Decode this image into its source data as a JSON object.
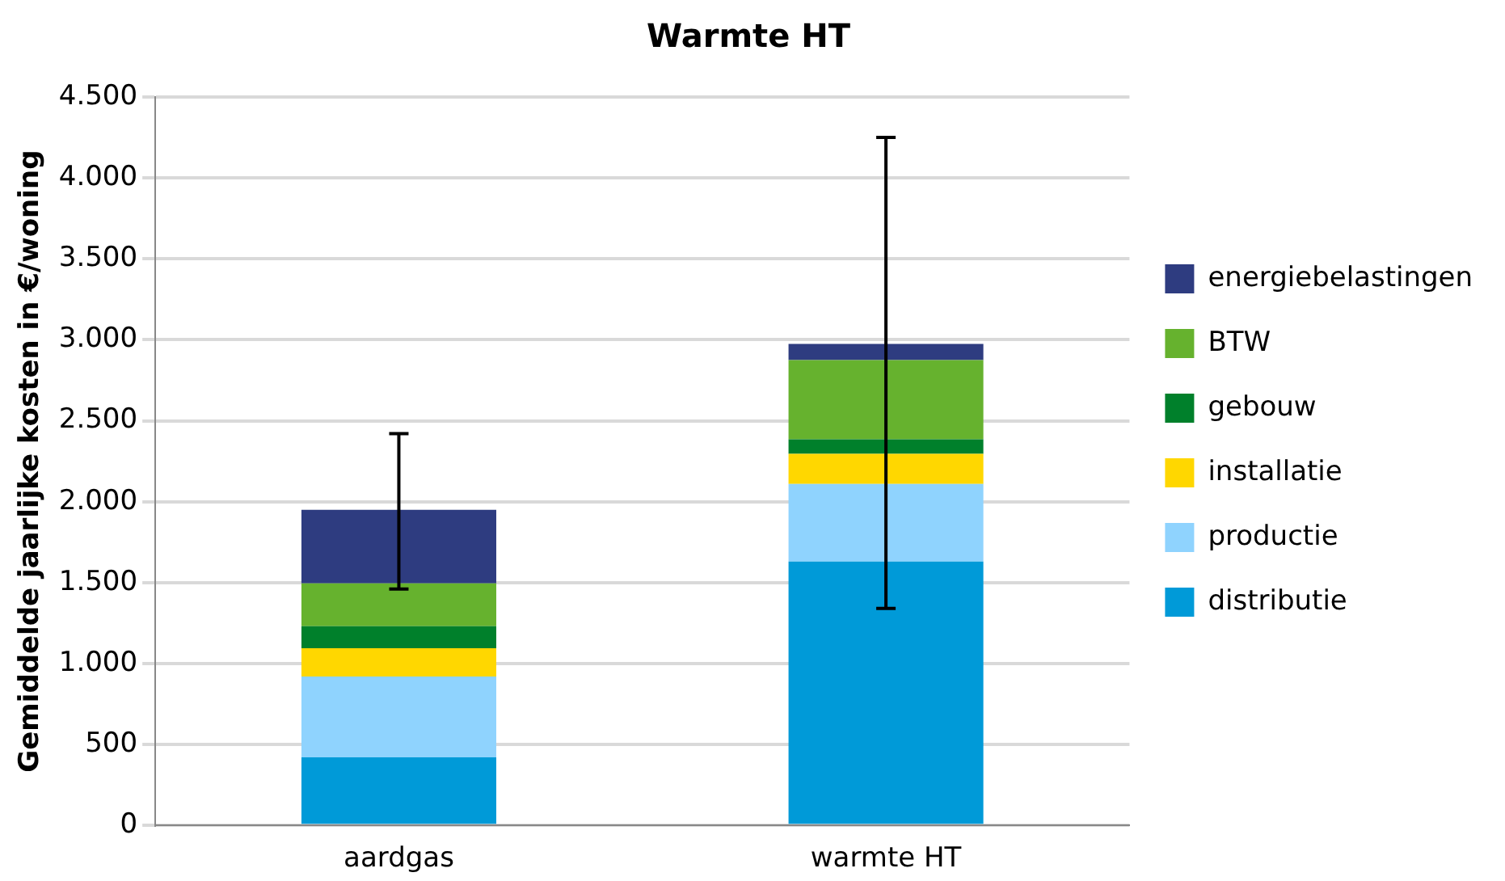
{
  "chart_data": {
    "type": "bar",
    "title": "Warmte HT",
    "ylabel": "Gemiddelde jaarlijke kosten in €/woning",
    "categories": [
      "aardgas",
      "warmte HT"
    ],
    "stacked": true,
    "grid": "y",
    "legend": "right",
    "ylim": [
      0,
      4500
    ],
    "yticks": [
      0,
      500,
      {
        "value": 1000,
        "label": "1.000"
      },
      {
        "value": 1500,
        "label": "1.500"
      },
      {
        "value": 2000,
        "label": "2.000"
      },
      {
        "value": 2500,
        "label": "2.500"
      },
      {
        "value": 3000,
        "label": "3.000"
      },
      {
        "value": 3500,
        "label": "3.500"
      },
      {
        "value": 4000,
        "label": "4.000"
      },
      {
        "value": 4500,
        "label": "4.500"
      }
    ],
    "series": [
      {
        "name": "distributie",
        "color": "#009ad8",
        "values": [
          420,
          1630
        ]
      },
      {
        "name": "productie",
        "color": "#8fd3fe",
        "values": [
          500,
          480
        ]
      },
      {
        "name": "installatie",
        "color": "#ffd700",
        "values": [
          175,
          185
        ]
      },
      {
        "name": "gebouw",
        "color": "#00802b",
        "values": [
          135,
          90
        ]
      },
      {
        "name": "BTW",
        "color": "#66b22e",
        "values": [
          265,
          490
        ]
      },
      {
        "name": "energiebelastingen",
        "color": "#2e3c80",
        "values": [
          455,
          100
        ],
        "errors": [
          [
            1460,
            2420
          ],
          [
            1340,
            4250
          ]
        ]
      }
    ]
  }
}
